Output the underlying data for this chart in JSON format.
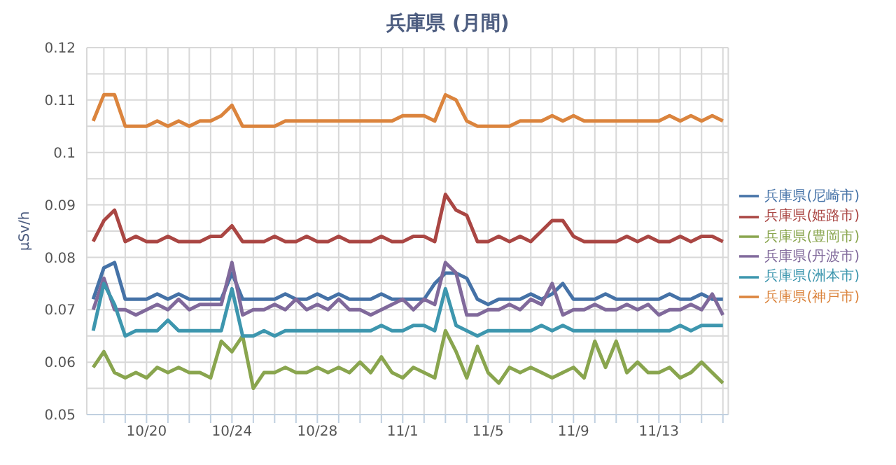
{
  "chart_data": {
    "type": "line",
    "title": "兵庫県 (月間)",
    "ylabel": "μSv/h",
    "categories": [
      null,
      null,
      null,
      null,
      null,
      "10/20",
      null,
      null,
      null,
      null,
      null,
      null,
      null,
      "10/24",
      null,
      null,
      null,
      null,
      null,
      null,
      null,
      "10/28",
      null,
      null,
      null,
      null,
      null,
      null,
      null,
      "11/1",
      null,
      null,
      null,
      null,
      null,
      null,
      null,
      "11/5",
      null,
      null,
      null,
      null,
      null,
      null,
      null,
      "11/9",
      null,
      null,
      null,
      null,
      null,
      null,
      null,
      "11/13",
      null,
      null,
      null,
      null,
      null,
      null
    ],
    "ylim": [
      0.05,
      0.12
    ],
    "yticks": [
      0.05,
      {
        "value": 0.055,
        "label": null
      },
      0.06,
      {
        "value": 0.065,
        "label": null
      },
      0.07,
      {
        "value": 0.075,
        "label": null
      },
      0.08,
      {
        "value": 0.085,
        "label": null
      },
      0.09,
      {
        "value": 0.095,
        "label": null
      },
      0.1,
      {
        "value": 0.105,
        "label": null
      },
      0.11,
      {
        "value": 0.115,
        "label": null
      },
      0.12
    ],
    "grid": true,
    "legend": "right",
    "marker": "none",
    "line_style": "solid",
    "series": [
      {
        "name": "兵庫県(尼崎市)",
        "color": "#4572a7",
        "values": [
          0.072,
          0.078,
          0.079,
          0.072,
          0.072,
          0.072,
          0.073,
          0.072,
          0.073,
          0.072,
          0.072,
          0.072,
          0.072,
          0.077,
          0.072,
          0.072,
          0.072,
          0.072,
          0.073,
          0.072,
          0.072,
          0.073,
          0.072,
          0.073,
          0.072,
          0.072,
          0.072,
          0.073,
          0.072,
          0.072,
          0.072,
          0.072,
          0.075,
          0.077,
          0.077,
          0.076,
          0.072,
          0.071,
          0.072,
          0.072,
          0.072,
          0.073,
          0.072,
          0.073,
          0.075,
          0.072,
          0.072,
          0.072,
          0.073,
          0.072,
          0.072,
          0.072,
          0.072,
          0.072,
          0.073,
          0.072,
          0.072,
          0.073,
          0.072,
          0.072
        ]
      },
      {
        "name": "兵庫県(姫路市)",
        "color": "#aa4643",
        "values": [
          0.083,
          0.087,
          0.089,
          0.083,
          0.084,
          0.083,
          0.083,
          0.084,
          0.083,
          0.083,
          0.083,
          0.084,
          0.084,
          0.086,
          0.083,
          0.083,
          0.083,
          0.084,
          0.083,
          0.083,
          0.084,
          0.083,
          0.083,
          0.084,
          0.083,
          0.083,
          0.083,
          0.084,
          0.083,
          0.083,
          0.084,
          0.084,
          0.083,
          0.092,
          0.089,
          0.088,
          0.083,
          0.083,
          0.084,
          0.083,
          0.084,
          0.083,
          0.085,
          0.087,
          0.087,
          0.084,
          0.083,
          0.083,
          0.083,
          0.083,
          0.084,
          0.083,
          0.084,
          0.083,
          0.083,
          0.084,
          0.083,
          0.084,
          0.084,
          0.083
        ]
      },
      {
        "name": "兵庫県(豊岡市)",
        "color": "#89a54e",
        "values": [
          0.059,
          0.062,
          0.058,
          0.057,
          0.058,
          0.057,
          0.059,
          0.058,
          0.059,
          0.058,
          0.058,
          0.057,
          0.064,
          0.062,
          0.065,
          0.055,
          0.058,
          0.058,
          0.059,
          0.058,
          0.058,
          0.059,
          0.058,
          0.059,
          0.058,
          0.06,
          0.058,
          0.061,
          0.058,
          0.057,
          0.059,
          0.058,
          0.057,
          0.066,
          0.062,
          0.057,
          0.063,
          0.058,
          0.056,
          0.059,
          0.058,
          0.059,
          0.058,
          0.057,
          0.058,
          0.059,
          0.057,
          0.064,
          0.059,
          0.064,
          0.058,
          0.06,
          0.058,
          0.058,
          0.059,
          0.057,
          0.058,
          0.06,
          0.058,
          0.056
        ]
      },
      {
        "name": "兵庫県(丹波市)",
        "color": "#80699b",
        "values": [
          0.07,
          0.076,
          0.07,
          0.07,
          0.069,
          0.07,
          0.071,
          0.07,
          0.072,
          0.07,
          0.071,
          0.071,
          0.071,
          0.079,
          0.069,
          0.07,
          0.07,
          0.071,
          0.07,
          0.072,
          0.07,
          0.071,
          0.07,
          0.072,
          0.07,
          0.07,
          0.069,
          0.07,
          0.071,
          0.072,
          0.07,
          0.072,
          0.071,
          0.079,
          0.077,
          0.069,
          0.069,
          0.07,
          0.07,
          0.071,
          0.07,
          0.072,
          0.071,
          0.075,
          0.069,
          0.07,
          0.07,
          0.071,
          0.07,
          0.07,
          0.071,
          0.07,
          0.071,
          0.069,
          0.07,
          0.07,
          0.071,
          0.07,
          0.073,
          0.069
        ]
      },
      {
        "name": "兵庫県(洲本市)",
        "color": "#3d96ae",
        "values": [
          0.066,
          0.075,
          0.071,
          0.065,
          0.066,
          0.066,
          0.066,
          0.068,
          0.066,
          0.066,
          0.066,
          0.066,
          0.066,
          0.074,
          0.065,
          0.065,
          0.066,
          0.065,
          0.066,
          0.066,
          0.066,
          0.066,
          0.066,
          0.066,
          0.066,
          0.066,
          0.066,
          0.067,
          0.066,
          0.066,
          0.067,
          0.067,
          0.066,
          0.074,
          0.067,
          0.066,
          0.065,
          0.066,
          0.066,
          0.066,
          0.066,
          0.066,
          0.067,
          0.066,
          0.067,
          0.066,
          0.066,
          0.066,
          0.066,
          0.066,
          0.066,
          0.066,
          0.066,
          0.066,
          0.066,
          0.067,
          0.066,
          0.067,
          0.067,
          0.067
        ]
      },
      {
        "name": "兵庫県(神戸市)",
        "color": "#db843d",
        "values": [
          0.106,
          0.111,
          0.111,
          0.105,
          0.105,
          0.105,
          0.106,
          0.105,
          0.106,
          0.105,
          0.106,
          0.106,
          0.107,
          0.109,
          0.105,
          0.105,
          0.105,
          0.105,
          0.106,
          0.106,
          0.106,
          0.106,
          0.106,
          0.106,
          0.106,
          0.106,
          0.106,
          0.106,
          0.106,
          0.107,
          0.107,
          0.107,
          0.106,
          0.111,
          0.11,
          0.106,
          0.105,
          0.105,
          0.105,
          0.105,
          0.106,
          0.106,
          0.106,
          0.107,
          0.106,
          0.107,
          0.106,
          0.106,
          0.106,
          0.106,
          0.106,
          0.106,
          0.106,
          0.106,
          0.107,
          0.106,
          0.107,
          0.106,
          0.107,
          0.106
        ]
      }
    ]
  }
}
